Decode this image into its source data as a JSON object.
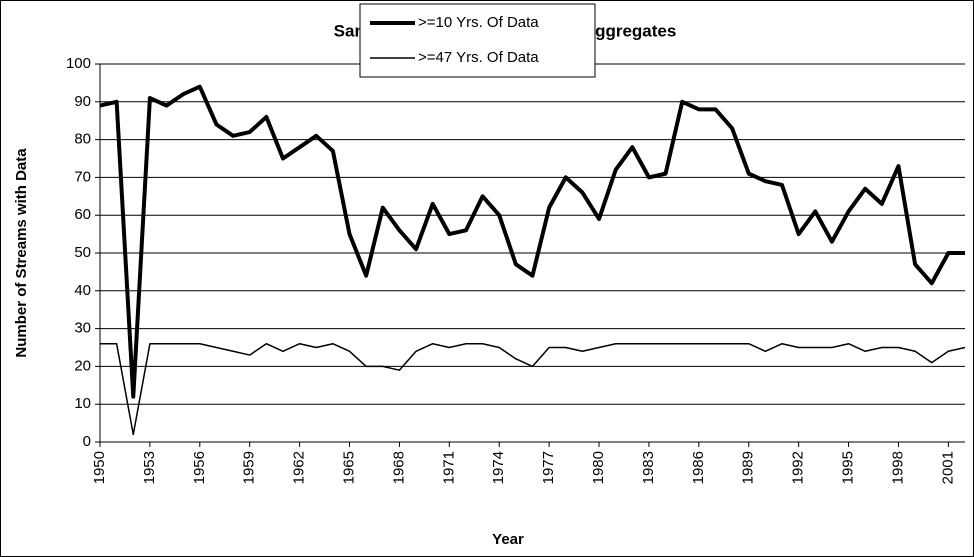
{
  "chart_data": {
    "type": "line",
    "title": "Sample Size for Area 6 Stream Aggregates",
    "x_label": "Year",
    "y_label": "Number of Streams with Data",
    "x": [
      1950,
      1951,
      1952,
      1953,
      1954,
      1955,
      1956,
      1957,
      1958,
      1959,
      1960,
      1961,
      1962,
      1963,
      1964,
      1965,
      1966,
      1967,
      1968,
      1969,
      1970,
      1971,
      1972,
      1973,
      1974,
      1975,
      1976,
      1977,
      1978,
      1979,
      1980,
      1981,
      1982,
      1983,
      1984,
      1985,
      1986,
      1987,
      1988,
      1989,
      1990,
      1991,
      1992,
      1993,
      1994,
      1995,
      1996,
      1997,
      1998,
      1999,
      2000,
      2001,
      2002
    ],
    "series": [
      {
        "name": ">=10 Yrs. Of Data",
        "color": "#000000",
        "width": 4,
        "values": [
          89,
          90,
          12,
          91,
          89,
          92,
          94,
          84,
          81,
          82,
          86,
          75,
          78,
          81,
          77,
          55,
          44,
          62,
          56,
          51,
          63,
          55,
          56,
          65,
          60,
          47,
          44,
          62,
          70,
          66,
          59,
          72,
          78,
          70,
          71,
          90,
          88,
          88,
          83,
          71,
          69,
          68,
          55,
          61,
          53,
          61,
          67,
          63,
          73,
          47,
          42,
          50,
          50
        ]
      },
      {
        "name": ">=47 Yrs. Of Data",
        "color": "#000000",
        "width": 1.5,
        "values": [
          26,
          26,
          2,
          26,
          26,
          26,
          26,
          25,
          24,
          23,
          26,
          24,
          26,
          25,
          26,
          24,
          20,
          20,
          19,
          24,
          26,
          25,
          26,
          26,
          25,
          22,
          20,
          25,
          25,
          24,
          25,
          26,
          26,
          26,
          26,
          26,
          26,
          26,
          26,
          26,
          24,
          26,
          25,
          25,
          25,
          26,
          24,
          25,
          25,
          24,
          21,
          24,
          25
        ]
      }
    ],
    "xlim": [
      1950,
      2002
    ],
    "xticks": [
      1950,
      1953,
      1956,
      1959,
      1962,
      1965,
      1968,
      1971,
      1974,
      1977,
      1980,
      1983,
      1986,
      1989,
      1992,
      1995,
      1998,
      2001
    ],
    "ylim": [
      0,
      100
    ],
    "yticks": [
      0,
      10,
      20,
      30,
      40,
      50,
      60,
      70,
      80,
      90,
      100
    ],
    "grid": true,
    "legend": "top"
  }
}
